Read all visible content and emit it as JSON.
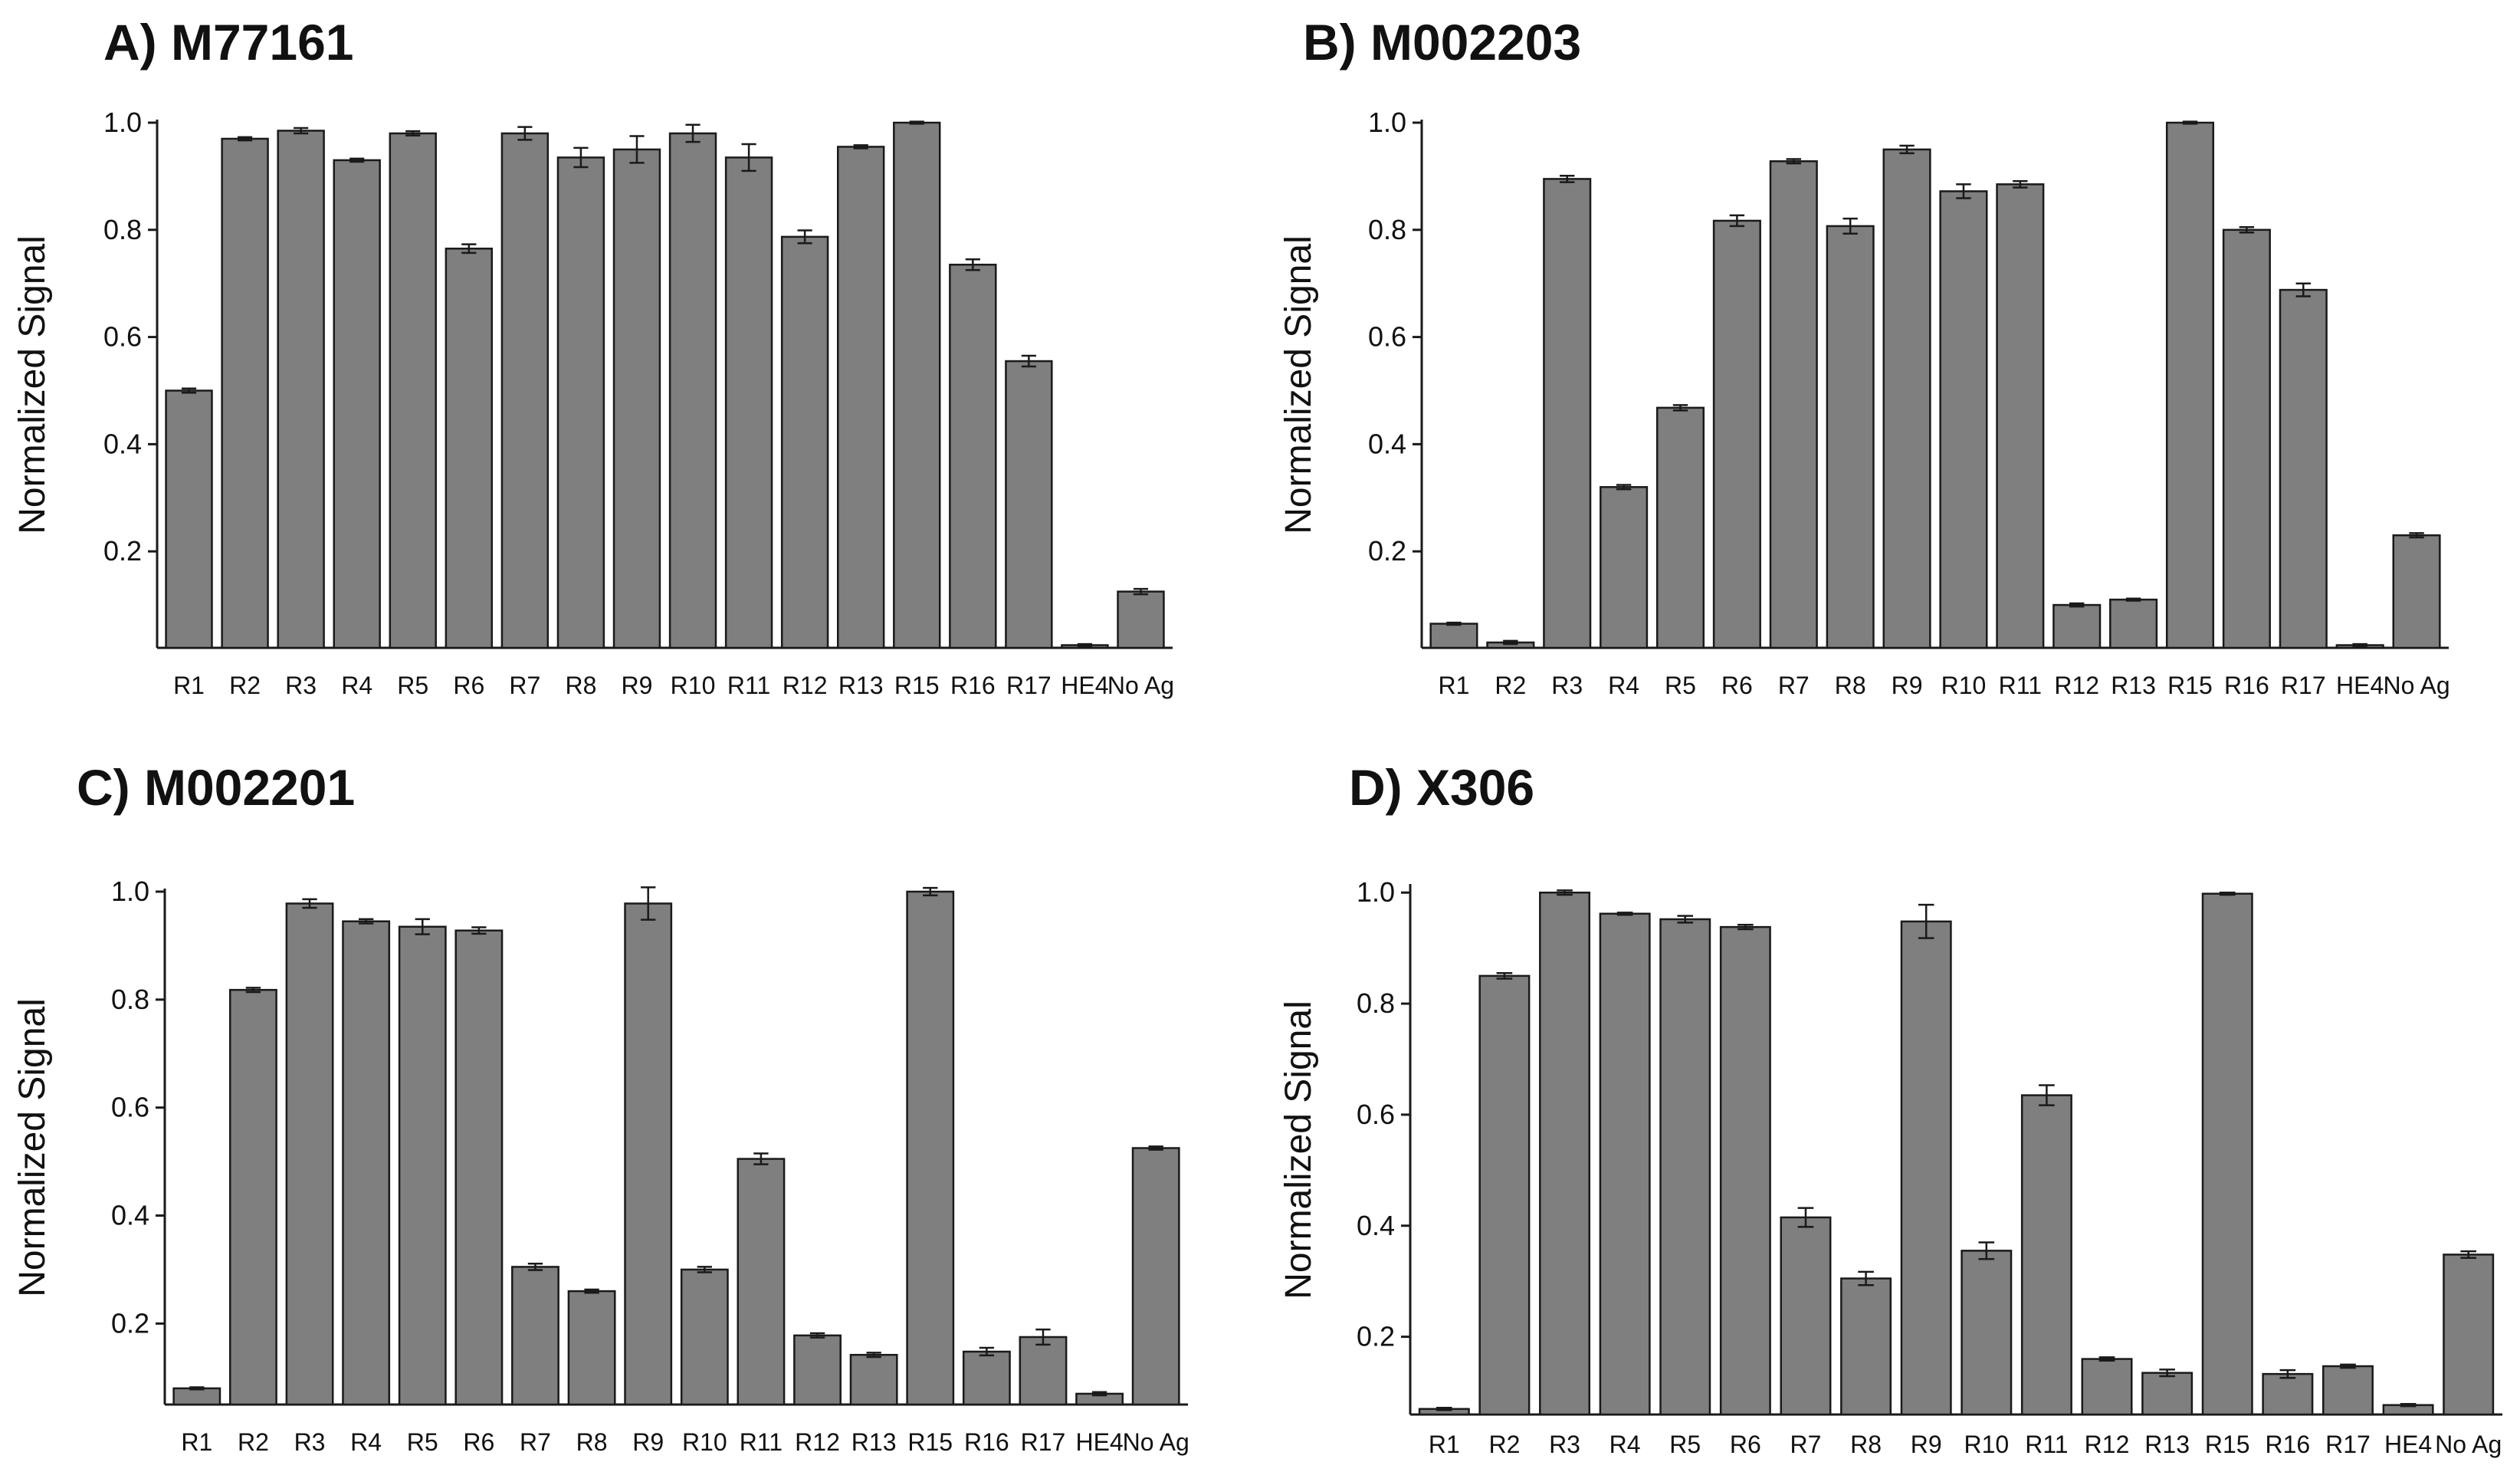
{
  "colors": {
    "bar_fill": "#7f7f7f",
    "bar_stroke": "#1a1a1a",
    "axis": "#1a1a1a",
    "text": "#111111"
  },
  "chart_data": [
    {
      "id": "A",
      "title": "A) M77161",
      "type": "bar",
      "ylabel": "Normalized Signal",
      "xlabel": "",
      "ylim": [
        0.02,
        1.0
      ],
      "yticks": [
        "0.2",
        "0.4",
        "0.6",
        "0.8",
        "1.0"
      ],
      "categories": [
        "R1",
        "R2",
        "R3",
        "R4",
        "R5",
        "R6",
        "R7",
        "R8",
        "R9",
        "R10",
        "R11",
        "R12",
        "R13",
        "R15",
        "R16",
        "R17",
        "HE4",
        "No Ag"
      ],
      "values": [
        0.5,
        0.97,
        0.985,
        0.93,
        0.98,
        0.765,
        0.98,
        0.935,
        0.95,
        0.98,
        0.935,
        0.787,
        0.955,
        1.0,
        0.735,
        0.555,
        0.025,
        0.125
      ],
      "errors": [
        0.004,
        0.003,
        0.005,
        0.003,
        0.004,
        0.008,
        0.012,
        0.018,
        0.025,
        0.016,
        0.025,
        0.012,
        0.003,
        0.002,
        0.01,
        0.01,
        0.002,
        0.005
      ]
    },
    {
      "id": "B",
      "title": "B) M002203",
      "type": "bar",
      "ylabel": "Normalized Signal",
      "xlabel": "",
      "ylim": [
        0.02,
        1.0
      ],
      "yticks": [
        "0.2",
        "0.4",
        "0.6",
        "0.8",
        "1.0"
      ],
      "categories": [
        "R1",
        "R2",
        "R3",
        "R4",
        "R5",
        "R6",
        "R7",
        "R8",
        "R9",
        "R10",
        "R11",
        "R12",
        "R13",
        "R15",
        "R16",
        "R17",
        "HE4",
        "No Ag"
      ],
      "values": [
        0.065,
        0.03,
        0.895,
        0.32,
        0.468,
        0.817,
        0.928,
        0.807,
        0.95,
        0.872,
        0.885,
        0.1,
        0.11,
        1.0,
        0.8,
        0.688,
        0.025,
        0.23
      ],
      "errors": [
        0.002,
        0.003,
        0.006,
        0.004,
        0.005,
        0.01,
        0.004,
        0.014,
        0.007,
        0.013,
        0.006,
        0.003,
        0.002,
        0.002,
        0.005,
        0.012,
        0.002,
        0.004
      ]
    },
    {
      "id": "C",
      "title": "C) M002201",
      "type": "bar",
      "ylabel": "Normalized Signal",
      "xlabel": "",
      "ylim": [
        0.05,
        1.0
      ],
      "yticks": [
        "0.2",
        "0.4",
        "0.6",
        "0.8",
        "1.0"
      ],
      "categories": [
        "R1",
        "R2",
        "R3",
        "R4",
        "R5",
        "R6",
        "R7",
        "R8",
        "R9",
        "R10",
        "R11",
        "R12",
        "R13",
        "R15",
        "R16",
        "R17",
        "HE4",
        "No Ag"
      ],
      "values": [
        0.08,
        0.818,
        0.978,
        0.945,
        0.935,
        0.928,
        0.305,
        0.26,
        0.978,
        0.3,
        0.505,
        0.178,
        0.142,
        1.0,
        0.148,
        0.175,
        0.07,
        0.525
      ],
      "errors": [
        0.002,
        0.004,
        0.008,
        0.004,
        0.014,
        0.006,
        0.006,
        0.003,
        0.03,
        0.005,
        0.01,
        0.004,
        0.004,
        0.007,
        0.007,
        0.014,
        0.003,
        0.003
      ]
    },
    {
      "id": "D",
      "title": "D) X306",
      "type": "bar",
      "ylabel": "Normalized Signal",
      "xlabel": "",
      "ylim": [
        0.06,
        1.01
      ],
      "yticks": [
        "0.2",
        "0.4",
        "0.6",
        "0.8",
        "1.0"
      ],
      "categories": [
        "R1",
        "R2",
        "R3",
        "R4",
        "R5",
        "R6",
        "R7",
        "R8",
        "R9",
        "R10",
        "R11",
        "R12",
        "R13",
        "R15",
        "R16",
        "R17",
        "HE4",
        "No Ag"
      ],
      "values": [
        0.07,
        0.85,
        1.0,
        0.962,
        0.952,
        0.938,
        0.415,
        0.305,
        0.948,
        0.355,
        0.635,
        0.16,
        0.135,
        0.998,
        0.133,
        0.147,
        0.077,
        0.348
      ],
      "errors": [
        0.002,
        0.005,
        0.004,
        0.002,
        0.006,
        0.004,
        0.017,
        0.012,
        0.03,
        0.015,
        0.018,
        0.003,
        0.006,
        0.002,
        0.007,
        0.003,
        0.002,
        0.006
      ]
    }
  ]
}
